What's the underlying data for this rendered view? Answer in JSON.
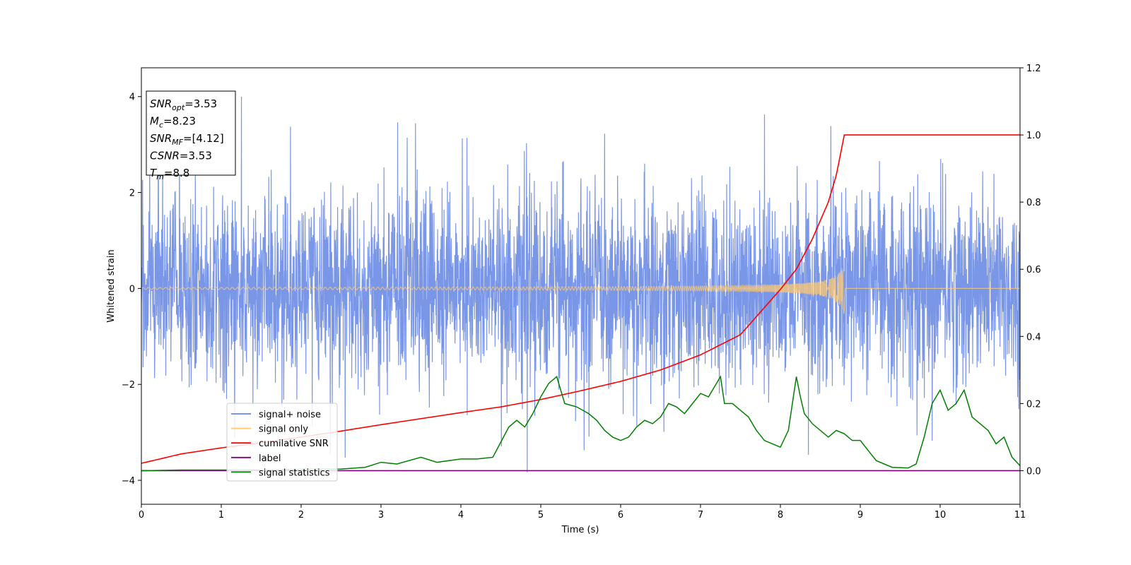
{
  "chart_data": {
    "type": "line",
    "xlabel": "Time (s)",
    "ylabel": "Whitened strain",
    "xlim": [
      0,
      11
    ],
    "ylim": [
      -4.5,
      4.6
    ],
    "ylim_right": [
      -0.1,
      1.2
    ],
    "x_ticks": [
      0,
      1,
      2,
      3,
      4,
      5,
      6,
      7,
      8,
      9,
      10,
      11
    ],
    "y_ticks": [
      -4,
      -2,
      0,
      2,
      4
    ],
    "y_ticks_right": [
      0.0,
      0.2,
      0.4,
      0.6,
      0.8,
      1.0,
      1.2
    ],
    "y_tick_labels": [
      "−4",
      "−2",
      "0",
      "2",
      "4"
    ],
    "y_tick_labels_right": [
      "0.0",
      "0.2",
      "0.4",
      "0.6",
      "0.8",
      "1.0",
      "1.2"
    ],
    "legend_placement": "lower-left",
    "grid": false,
    "series": [
      {
        "name": "signal+ noise",
        "axis": "left",
        "color": "#6688e4",
        "style": "dense noise, typical amplitude about ±2.5, peaks up to 4.2",
        "envelope_x": [
          0,
          1,
          2,
          3,
          4,
          5,
          6,
          7,
          8,
          9,
          10,
          11
        ],
        "envelope_y_max": [
          3.7,
          4.2,
          3.6,
          3.55,
          3.3,
          3.65,
          3.4,
          3.6,
          3.7,
          3.5,
          3.5,
          3.0
        ],
        "envelope_y_min": [
          -2.9,
          -3.2,
          -3.2,
          -4.1,
          -3.5,
          -3.95,
          -3.3,
          -3.0,
          -3.4,
          -3.6,
          -3.5,
          -3.3
        ]
      },
      {
        "name": "signal only",
        "axis": "left",
        "color": "#ffc870",
        "style": "chirp, amplitude grows until merger at 8.8 s, then flat at 0",
        "x": [
          0,
          2,
          4,
          6,
          7,
          7.5,
          8,
          8.3,
          8.5,
          8.65,
          8.75,
          8.8,
          8.81,
          11
        ],
        "amplitude": [
          0.02,
          0.025,
          0.03,
          0.04,
          0.05,
          0.06,
          0.08,
          0.11,
          0.15,
          0.22,
          0.35,
          0.55,
          0,
          0
        ]
      },
      {
        "name": "cumilative SNR",
        "axis": "right",
        "color": "#ff0000",
        "x": [
          0,
          0.5,
          1,
          1.5,
          2,
          2.5,
          3,
          3.5,
          4,
          4.5,
          5,
          5.5,
          6,
          6.5,
          7,
          7.5,
          8,
          8.2,
          8.4,
          8.6,
          8.7,
          8.8,
          11
        ],
        "values": [
          0.022,
          0.05,
          0.068,
          0.083,
          0.1,
          0.118,
          0.137,
          0.155,
          0.173,
          0.19,
          0.212,
          0.238,
          0.266,
          0.3,
          0.345,
          0.405,
          0.54,
          0.6,
          0.69,
          0.8,
          0.88,
          1.0,
          1.0
        ]
      },
      {
        "name": "label",
        "axis": "right",
        "color": "#800080",
        "x": [
          0,
          11
        ],
        "values": [
          0,
          0
        ]
      },
      {
        "name": "signal statistics",
        "axis": "right",
        "color": "#008000",
        "x": [
          0,
          0.5,
          1,
          1.5,
          2,
          2.5,
          2.8,
          3,
          3.2,
          3.5,
          3.7,
          4,
          4.2,
          4.4,
          4.6,
          4.7,
          4.8,
          4.9,
          5,
          5.1,
          5.2,
          5.3,
          5.45,
          5.6,
          5.7,
          5.8,
          5.9,
          6,
          6.1,
          6.2,
          6.3,
          6.4,
          6.5,
          6.6,
          6.7,
          6.8,
          6.9,
          7,
          7.1,
          7.2,
          7.25,
          7.3,
          7.4,
          7.5,
          7.6,
          7.7,
          7.8,
          7.9,
          8,
          8.1,
          8.2,
          8.25,
          8.3,
          8.4,
          8.5,
          8.6,
          8.7,
          8.8,
          8.9,
          9,
          9.1,
          9.2,
          9.4,
          9.6,
          9.7,
          9.8,
          9.9,
          10,
          10.1,
          10.2,
          10.3,
          10.4,
          10.6,
          10.7,
          10.8,
          10.9,
          11
        ],
        "values": [
          0.0,
          0.002,
          0.002,
          0.002,
          0.004,
          0.005,
          0.01,
          0.025,
          0.02,
          0.04,
          0.025,
          0.035,
          0.035,
          0.04,
          0.13,
          0.15,
          0.13,
          0.17,
          0.22,
          0.26,
          0.28,
          0.2,
          0.19,
          0.17,
          0.15,
          0.12,
          0.1,
          0.09,
          0.1,
          0.13,
          0.15,
          0.14,
          0.16,
          0.2,
          0.19,
          0.17,
          0.2,
          0.23,
          0.22,
          0.26,
          0.28,
          0.2,
          0.2,
          0.18,
          0.16,
          0.12,
          0.09,
          0.08,
          0.07,
          0.12,
          0.28,
          0.22,
          0.17,
          0.14,
          0.12,
          0.1,
          0.12,
          0.11,
          0.09,
          0.09,
          0.06,
          0.03,
          0.01,
          0.008,
          0.02,
          0.1,
          0.2,
          0.24,
          0.18,
          0.2,
          0.24,
          0.16,
          0.12,
          0.08,
          0.1,
          0.04,
          0.015
        ]
      }
    ],
    "annotation_box": {
      "lines": [
        {
          "main": "SNR",
          "sub": "opt",
          "rest": "=3.53"
        },
        {
          "main": "M",
          "sub": "c",
          "rest": "=8.23"
        },
        {
          "main": "SNR",
          "sub": "MF",
          "rest": "=[4.12]"
        },
        {
          "main": "CSNR",
          "sub": "",
          "rest": "=3.53"
        },
        {
          "main": "T",
          "sub": "m",
          "rest": "=8.8"
        }
      ]
    }
  }
}
